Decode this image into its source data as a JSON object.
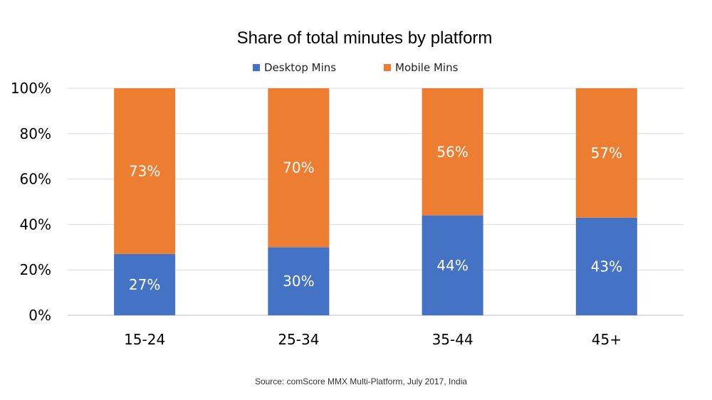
{
  "chart_data": {
    "type": "bar",
    "stacked": true,
    "title": "Share of total minutes by platform",
    "categories": [
      "15-24",
      "25-34",
      "35-44",
      "45+"
    ],
    "series": [
      {
        "name": "Desktop Mins",
        "color": "#4472C4",
        "values": [
          27,
          30,
          44,
          43
        ],
        "labels": [
          "27%",
          "30%",
          "44%",
          "43%"
        ]
      },
      {
        "name": "Mobile Mins",
        "color": "#ED7D31",
        "values": [
          73,
          70,
          56,
          57
        ],
        "labels": [
          "73%",
          "70%",
          "56%",
          "57%"
        ]
      }
    ],
    "ylim": [
      0,
      100
    ],
    "yticks": [
      0,
      20,
      40,
      60,
      80,
      100
    ],
    "ytick_labels": [
      "0%",
      "20%",
      "40%",
      "60%",
      "80%",
      "100%"
    ],
    "grid": true,
    "legend_position": "top",
    "source": "Source: comScore MMX Multi-Platform,  July 2017, India"
  }
}
